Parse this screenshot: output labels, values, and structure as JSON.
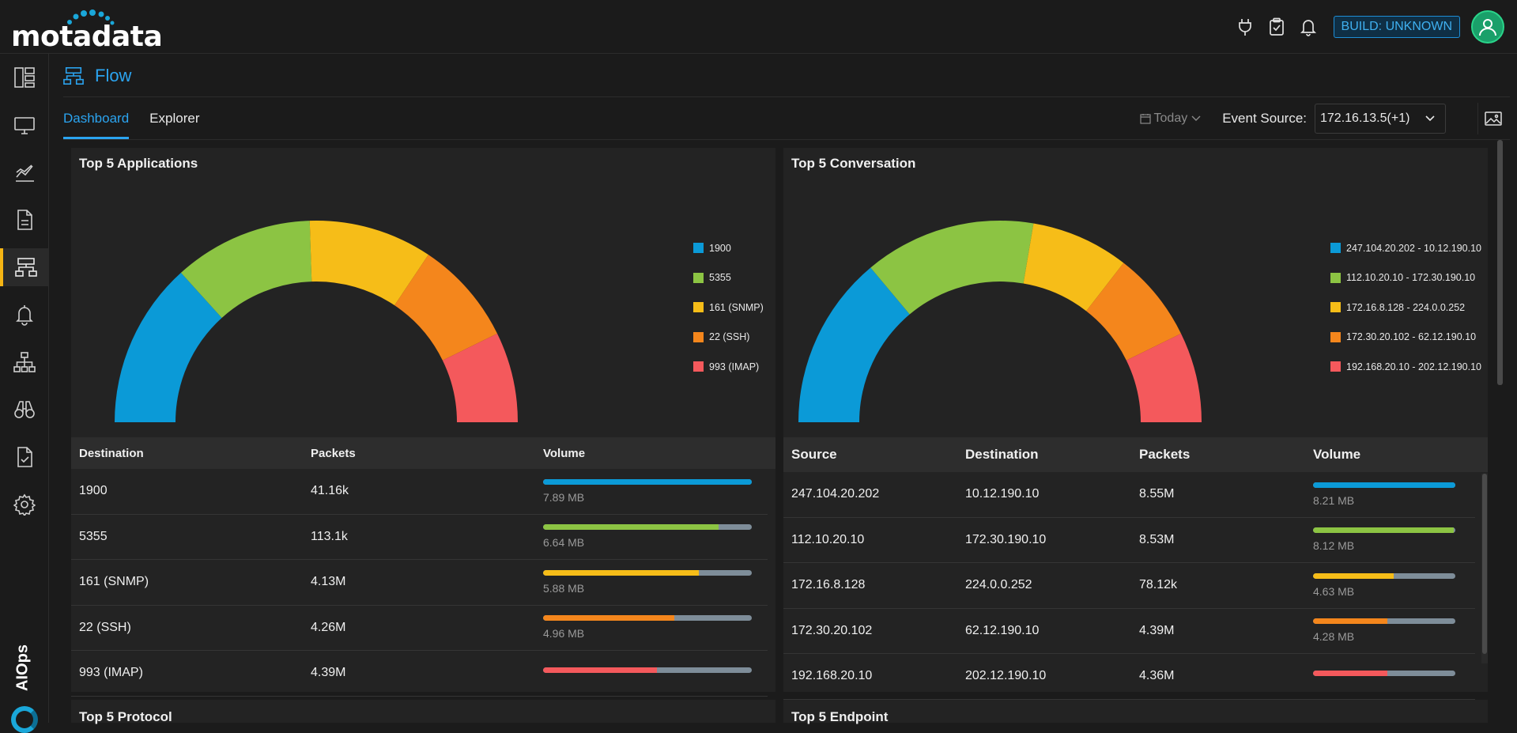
{
  "brand": {
    "logo_text": "motadata"
  },
  "header": {
    "build_badge": "BUILD: UNKNOWN",
    "icons": [
      "plug-icon",
      "clipboard-check-icon",
      "bell-icon",
      "user-avatar-icon"
    ]
  },
  "sidebar": {
    "items": [
      {
        "icon": "dashboard-icon"
      },
      {
        "icon": "monitor-icon"
      },
      {
        "icon": "metrics-chart-icon"
      },
      {
        "icon": "log-document-icon"
      },
      {
        "icon": "flow-icon",
        "active": true
      },
      {
        "icon": "alert-bell-icon"
      },
      {
        "icon": "topology-icon"
      },
      {
        "icon": "binoculars-icon"
      },
      {
        "icon": "report-check-icon"
      },
      {
        "icon": "settings-gear-icon"
      }
    ],
    "aiops_label": "AIOps"
  },
  "page": {
    "title": "Flow"
  },
  "tabs": [
    {
      "label": "Dashboard",
      "active": true
    },
    {
      "label": "Explorer",
      "active": false
    }
  ],
  "filters": {
    "date": "Today",
    "event_source_label": "Event Source:",
    "event_source_value": "172.16.13.5(+1)"
  },
  "colors": [
    "#0b9ad7",
    "#8cc443",
    "#f6bd18",
    "#f4861c",
    "#f4595c"
  ],
  "widgets": {
    "applications": {
      "title": "Top 5 Applications",
      "columns": [
        "Destination",
        "Packets",
        "Volume"
      ],
      "rows": [
        {
          "name": "1900",
          "packets": "41.16k",
          "volume": "7.89 MB",
          "volume_mb": 7.89
        },
        {
          "name": "5355",
          "packets": "113.1k",
          "volume": "6.64 MB",
          "volume_mb": 6.64
        },
        {
          "name": "161 (SNMP)",
          "packets": "4.13M",
          "volume": "5.88 MB",
          "volume_mb": 5.88
        },
        {
          "name": "22 (SSH)",
          "packets": "4.26M",
          "volume": "4.96 MB",
          "volume_mb": 4.96
        },
        {
          "name": "993 (IMAP)",
          "packets": "4.39M",
          "volume": "",
          "volume_mb": 4.3
        }
      ]
    },
    "conversation": {
      "title": "Top 5 Conversation",
      "columns": [
        "Source",
        "Destination",
        "Packets",
        "Volume"
      ],
      "rows": [
        {
          "source": "247.104.20.202",
          "destination": "10.12.190.10",
          "packets": "8.55M",
          "volume": "8.21 MB",
          "volume_mb": 8.21
        },
        {
          "source": "112.10.20.10",
          "destination": "172.30.190.10",
          "packets": "8.53M",
          "volume": "8.12 MB",
          "volume_mb": 8.12
        },
        {
          "source": "172.16.8.128",
          "destination": "224.0.0.252",
          "packets": "78.12k",
          "volume": "4.63 MB",
          "volume_mb": 4.63
        },
        {
          "source": "172.30.20.102",
          "destination": "62.12.190.10",
          "packets": "4.39M",
          "volume": "4.28 MB",
          "volume_mb": 4.28
        },
        {
          "source": "192.168.20.10",
          "destination": "202.12.190.10",
          "packets": "4.36M",
          "volume": "",
          "volume_mb": 4.28
        }
      ],
      "legend": [
        "247.104.20.202 - 10.12.190.10",
        "112.10.20.10 - 172.30.190.10",
        "172.16.8.128 - 224.0.0.252",
        "172.30.20.102 - 62.12.190.10",
        "192.168.20.10 - 202.12.190.10"
      ]
    },
    "protocol": {
      "title": "Top 5 Protocol"
    },
    "endpoint": {
      "title": "Top 5 Endpoint"
    }
  },
  "chart_data": [
    {
      "type": "pie",
      "title": "Top 5 Applications",
      "categories": [
        "1900",
        "5355",
        "161 (SNMP)",
        "22 (SSH)",
        "993 (IMAP)"
      ],
      "values": [
        7.89,
        6.64,
        5.88,
        4.96,
        4.3
      ],
      "legend_position": "right"
    },
    {
      "type": "pie",
      "title": "Top 5 Conversation",
      "categories": [
        "247.104.20.202 - 10.12.190.10",
        "112.10.20.10 - 172.30.190.10",
        "172.16.8.128 - 224.0.0.252",
        "172.30.20.102 - 62.12.190.10",
        "192.168.20.10 - 202.12.190.10"
      ],
      "values": [
        8.21,
        8.12,
        4.63,
        4.28,
        4.28
      ],
      "legend_position": "right"
    }
  ]
}
